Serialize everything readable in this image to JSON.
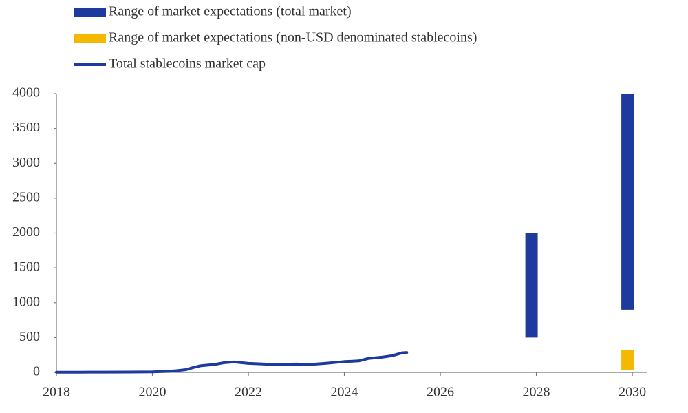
{
  "chart_data": {
    "type": "bar",
    "xlim": [
      2018,
      2030.3
    ],
    "xticks": [
      2018,
      2020,
      2022,
      2024,
      2026,
      2028,
      2030
    ],
    "ylim": [
      0,
      4000
    ],
    "yticks": [
      0,
      500,
      1000,
      1500,
      2000,
      2500,
      3000,
      3500,
      4000
    ],
    "grid": false,
    "series": [
      {
        "name": "Range of market expectations (total market)",
        "type": "range",
        "color": "#1f3a9e",
        "x": [
          2027.9,
          2029.9
        ],
        "low": [
          500,
          900
        ],
        "high": [
          2000,
          4000
        ]
      },
      {
        "name": "Range of market expectations (non-USD denominated stablecoins)",
        "type": "range",
        "color": "#f5b800",
        "x": [
          2029.9
        ],
        "low": [
          30
        ],
        "high": [
          320
        ]
      },
      {
        "name": "Total stablecoins market cap",
        "type": "line",
        "color": "#1f3a9e",
        "x": [
          2018,
          2018.5,
          2019,
          2019.5,
          2020,
          2020.3,
          2020.5,
          2020.7,
          2020.85,
          2021,
          2021.3,
          2021.5,
          2021.7,
          2022,
          2022.5,
          2023,
          2023.3,
          2023.6,
          2024,
          2024.3,
          2024.5,
          2024.8,
          2025,
          2025.2,
          2025.3
        ],
        "values": [
          2,
          3,
          4,
          5,
          8,
          15,
          25,
          40,
          70,
          95,
          115,
          140,
          150,
          130,
          115,
          120,
          115,
          130,
          155,
          165,
          200,
          220,
          240,
          280,
          285
        ]
      }
    ]
  }
}
